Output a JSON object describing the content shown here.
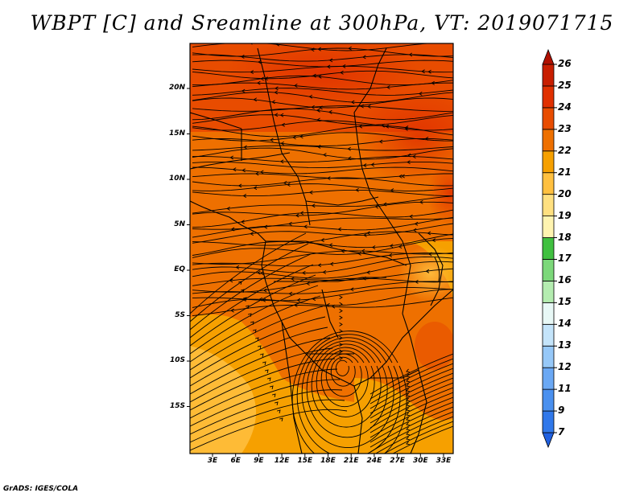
{
  "title": "WBPT [C] and Sreamline at 300hPa, VT: 2019071715",
  "credit": "GrADS: IGES/COLA",
  "map": {
    "lat_labels": [
      "20N",
      "15N",
      "10N",
      "5N",
      "EQ",
      "5S",
      "10S",
      "15S"
    ],
    "lon_labels": [
      "3E",
      "6E",
      "9E",
      "12E",
      "15E",
      "18E",
      "21E",
      "24E",
      "27E",
      "30E",
      "33E"
    ]
  },
  "colorbar": {
    "labels": [
      "7",
      "9",
      "11",
      "12",
      "13",
      "14",
      "15",
      "16",
      "17",
      "18",
      "19",
      "20",
      "21",
      "22",
      "23",
      "24",
      "25",
      "26"
    ],
    "colors": [
      "#2060e0",
      "#3078ea",
      "#4a90ef",
      "#6aa8f4",
      "#96c8f8",
      "#c4e4fa",
      "#e8f8f6",
      "#b4ecb0",
      "#7cd87a",
      "#40c040",
      "#fff4b0",
      "#ffe080",
      "#ffc040",
      "#f6a000",
      "#ee7000",
      "#e84c00",
      "#e03000",
      "#c81e00",
      "#b01000"
    ]
  }
}
